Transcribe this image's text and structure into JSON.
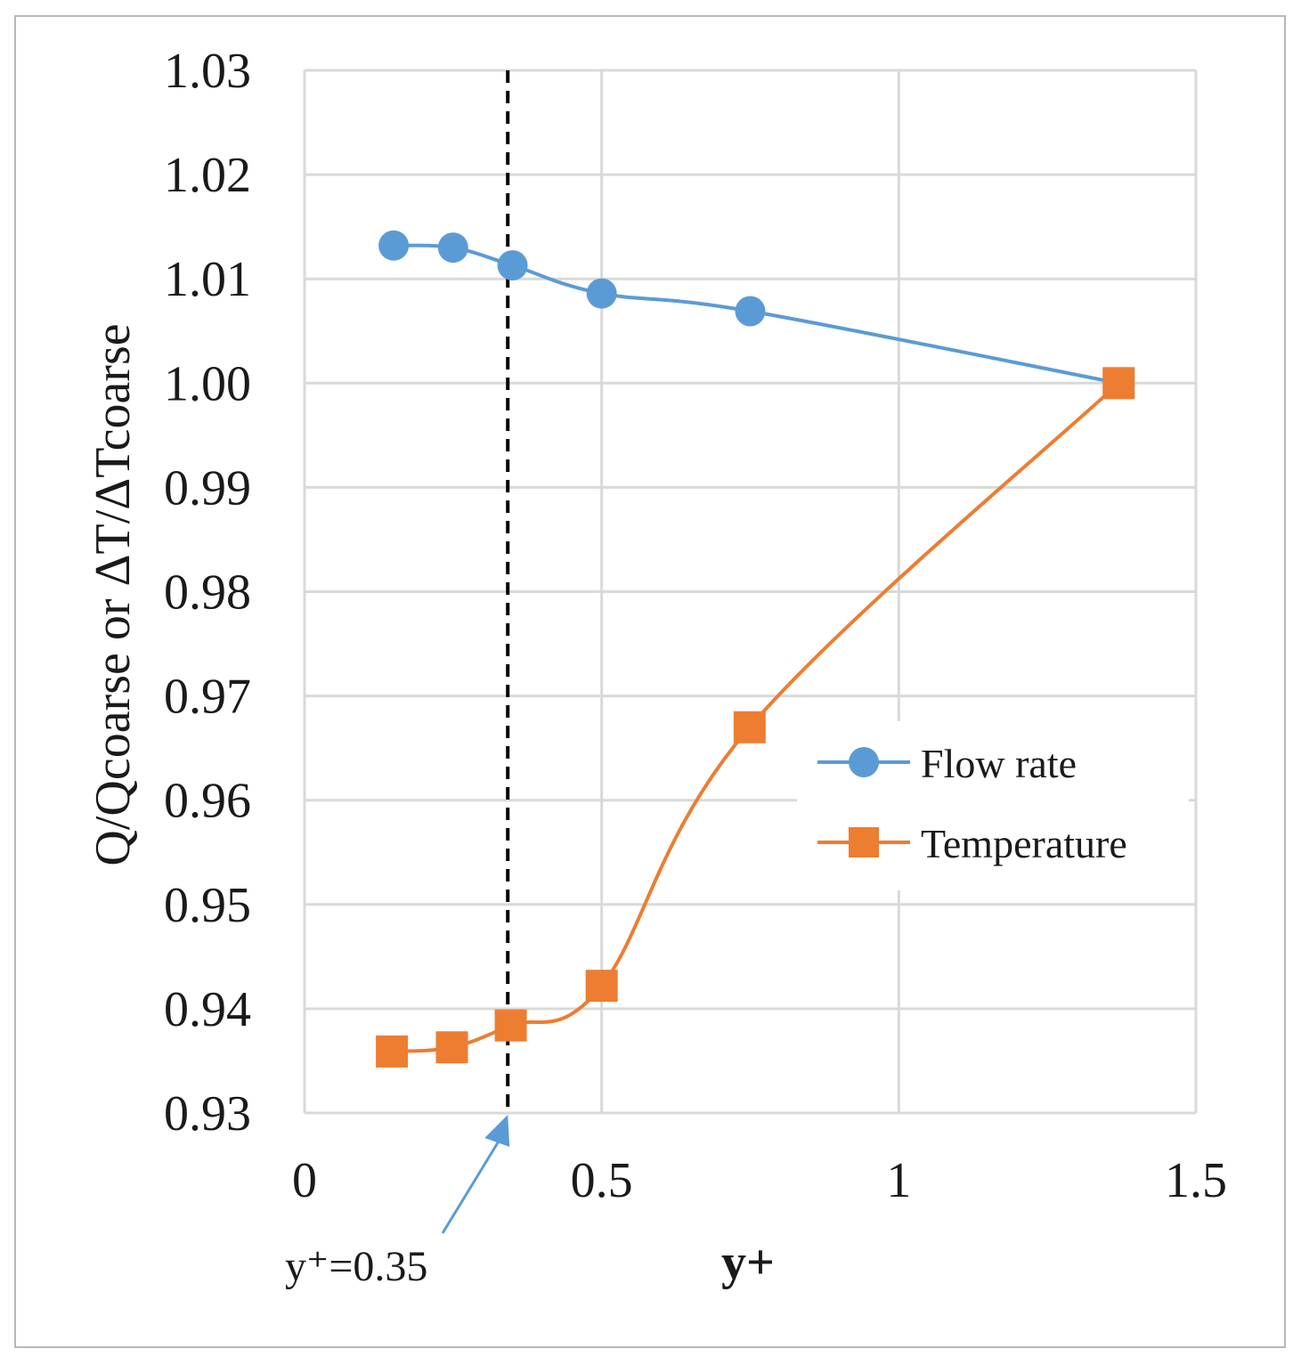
{
  "chart_data": {
    "type": "line",
    "title": "",
    "xlabel": "y+",
    "ylabel": "Q/Qcoarse or ΔT/ΔTcoarse",
    "xlim": [
      0,
      1.5
    ],
    "ylim": [
      0.93,
      1.03
    ],
    "x_ticks": [
      0,
      0.5,
      1,
      1.5
    ],
    "x_tick_labels": [
      "0",
      "0.5",
      "1",
      "1.5"
    ],
    "y_ticks": [
      0.93,
      0.94,
      0.95,
      0.96,
      0.97,
      0.98,
      0.99,
      1.0,
      1.01,
      1.02,
      1.03
    ],
    "y_tick_labels": [
      "0.93",
      "0.94",
      "0.95",
      "0.96",
      "0.97",
      "0.98",
      "0.99",
      "1.00",
      "1.01",
      "1.02",
      "1.03"
    ],
    "grid": true,
    "legend_position": "right-middle",
    "series": [
      {
        "name": "Flow rate",
        "color": "#5b9bd5",
        "marker": "circle",
        "x": [
          0.15,
          0.25,
          0.35,
          0.5,
          0.75,
          1.37
        ],
        "y": [
          1.0132,
          1.013,
          1.0113,
          1.0086,
          1.0069,
          1.0
        ]
      },
      {
        "name": "Temperature",
        "color": "#ed7d31",
        "marker": "square",
        "x": [
          0.147,
          0.248,
          0.347,
          0.5,
          0.749,
          1.37
        ],
        "y": [
          0.9359,
          0.9363,
          0.9384,
          0.9422,
          0.967,
          1.0
        ]
      }
    ],
    "annotations": [
      {
        "type": "vertical_line",
        "x": 0.342,
        "style": "dashed",
        "color": "#000000"
      },
      {
        "type": "arrow_label",
        "text": "y⁺=0.35",
        "points_to_x": 0.342,
        "color": "#5b9bd5"
      }
    ]
  }
}
